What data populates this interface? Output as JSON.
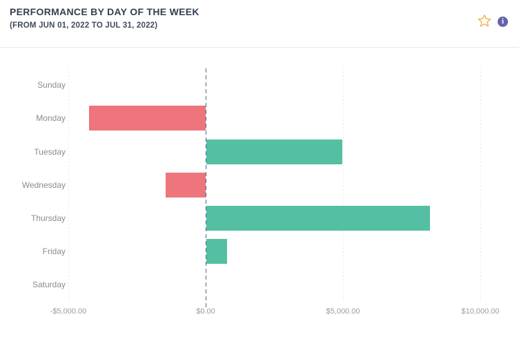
{
  "header": {
    "title": "PERFORMANCE BY DAY OF THE WEEK",
    "subtitle": "(FROM JUN 01, 2022 TO JUL 31, 2022)",
    "icons": {
      "favorite": {
        "name": "star-icon",
        "shape": "star-outline",
        "color": "#f2ae4e"
      },
      "info": {
        "name": "info-icon",
        "glyph": "i",
        "color": "#6462ae"
      }
    }
  },
  "chart_data": {
    "type": "bar",
    "orientation": "horizontal",
    "title": "PERFORMANCE BY DAY OF THE WEEK",
    "subtitle": "(FROM JUN 01, 2022 TO JUL 31, 2022)",
    "categories": [
      "Sunday",
      "Monday",
      "Tuesday",
      "Wednesday",
      "Thursday",
      "Friday",
      "Saturday"
    ],
    "values": [
      0,
      -4250,
      4950,
      -1450,
      8150,
      750,
      0
    ],
    "xlabel": "",
    "ylabel": "",
    "xlim": [
      -5000,
      10000
    ],
    "x_ticks": [
      -5000,
      0,
      5000,
      10000
    ],
    "x_tick_labels": [
      "-$5,000.00",
      "$0.00",
      "$5,000.00",
      "$10,000.00"
    ],
    "grid": "vertical-dotted-at-ticks",
    "zero_line": "dashed-dark",
    "legend": "none",
    "colors": {
      "positive": "#54bfa3",
      "negative": "#ee757b",
      "zero_line": "#4e6d7e",
      "gridline": "#e2e2e2",
      "y_tick_text": "#8b8b8b",
      "x_tick_text": "#9a9a9a"
    }
  }
}
